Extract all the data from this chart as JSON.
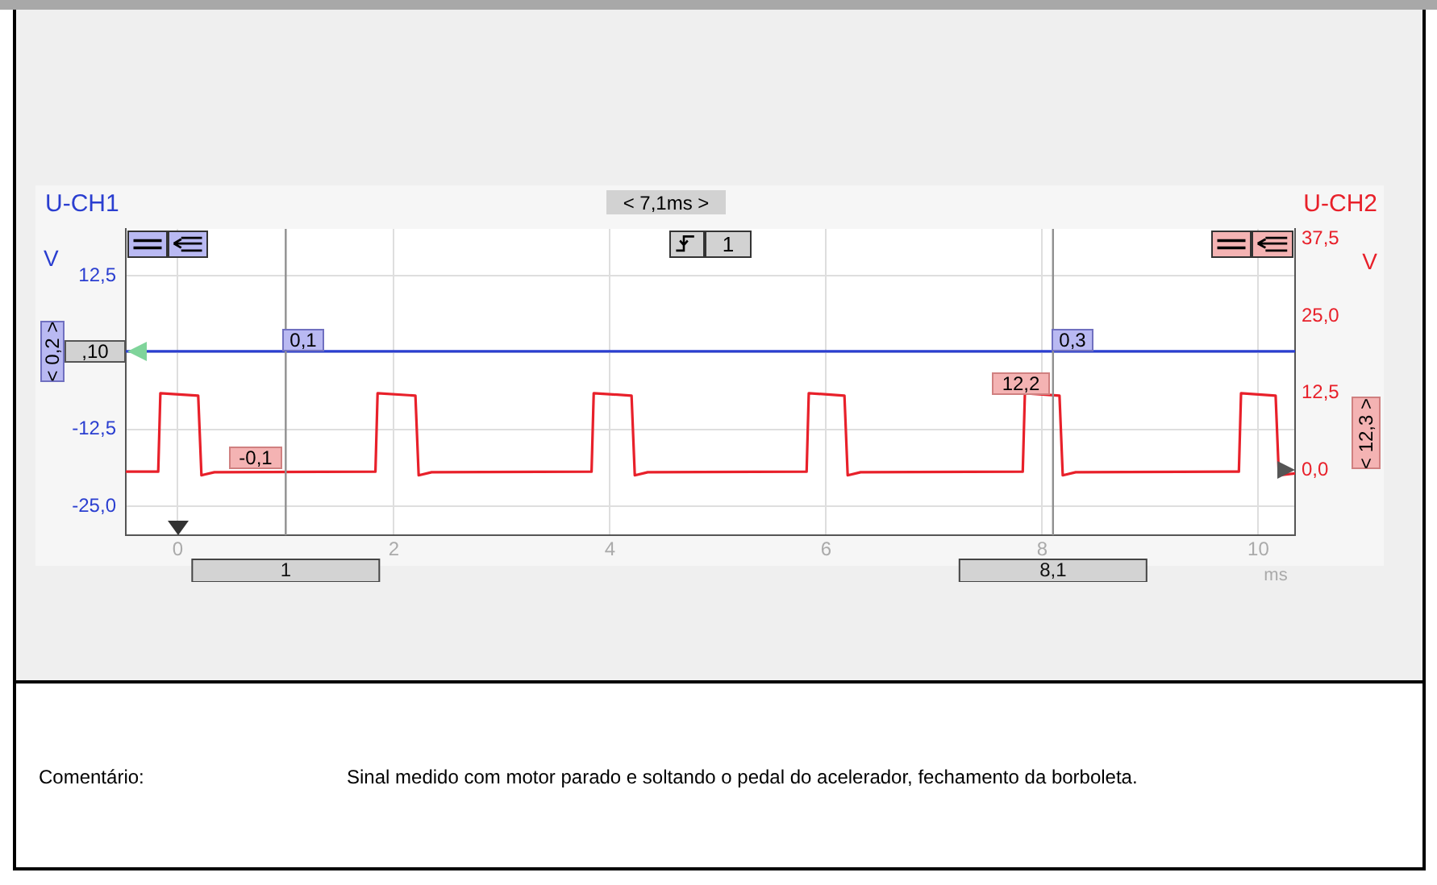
{
  "chart_data": {
    "type": "line",
    "series": [
      {
        "name": "U-CH1",
        "color": "#2a3ed0",
        "axis": "y",
        "x": [
          -0.48,
          0,
          2,
          4,
          6,
          8,
          10,
          10.34
        ],
        "values": [
          0.2,
          0.2,
          0.2,
          0.2,
          0.2,
          0.2,
          0.2,
          0.2
        ]
      },
      {
        "name": "U-CH2",
        "color": "#e8202a",
        "axis": "y2",
        "x": [
          -0.48,
          -0.18,
          -0.16,
          0.19,
          0.22,
          0.34,
          1.83,
          1.85,
          2.2,
          2.23,
          2.35,
          3.83,
          3.85,
          4.2,
          4.23,
          4.35,
          5.82,
          5.84,
          6.17,
          6.2,
          6.32,
          7.82,
          7.84,
          8.16,
          8.19,
          8.31,
          9.82,
          9.84,
          10.16,
          10.19,
          10.34
        ],
        "values": [
          -0.2,
          -0.2,
          12.5,
          12.1,
          -0.8,
          -0.3,
          -0.2,
          12.5,
          12.1,
          -0.8,
          -0.3,
          -0.2,
          12.5,
          12.1,
          -0.8,
          -0.3,
          -0.2,
          12.5,
          12.1,
          -0.8,
          -0.3,
          -0.2,
          12.5,
          12.1,
          -0.8,
          -0.3,
          -0.2,
          12.5,
          12.1,
          -0.8,
          -0.5
        ]
      }
    ],
    "xlabel": "ms",
    "ylabel": "V",
    "y2label": "V",
    "xlim": [
      -0.48,
      10.34
    ],
    "xticks": [
      0,
      2,
      4,
      6,
      8,
      10
    ],
    "ylim": [
      -29.7,
      20.1
    ],
    "yticks": [
      {
        "value": 12.5,
        "label": "12,5"
      },
      {
        "value": 0,
        "label": null
      },
      {
        "value": -12.5,
        "label": "-12,5"
      },
      {
        "value": -25,
        "label": "-25,0"
      }
    ],
    "y2lim": [
      -10.5,
      39.1
    ],
    "y2ticks": [
      {
        "value": 0,
        "label": "0,0"
      },
      {
        "value": 12.5,
        "label": "12,5"
      },
      {
        "value": 25,
        "label": "25,0"
      },
      {
        "value": 37.5,
        "label": "37,5"
      }
    ],
    "grid": true,
    "marker": "none",
    "line_style": "solid",
    "ref_lines": [
      {
        "axis": "x",
        "value": 1,
        "label": "1",
        "color": "#909090"
      },
      {
        "axis": "x",
        "value": 8.1,
        "label": "8,1",
        "color": "#909090"
      }
    ],
    "annotations": [
      "< 7,1ms >",
      "0,1",
      "-0,1",
      "0,3",
      "12,2",
      ",10",
      "< 0,2 >",
      "< 12,3 >",
      "1",
      "Comentário:",
      "Sinal medido com motor parado e soltando o pedal do acelerador, fechamento da borboleta."
    ]
  }
}
